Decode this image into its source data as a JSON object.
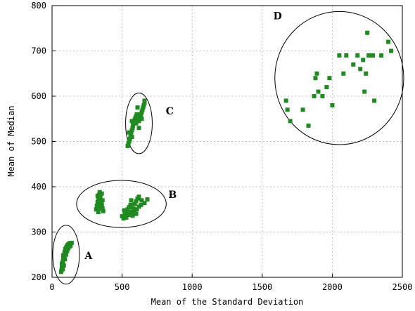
{
  "chart_data": {
    "type": "scatter",
    "xlabel": "Mean of the Standard Deviation",
    "ylabel": "Mean of Median",
    "xlim": [
      0,
      2500
    ],
    "ylim": [
      200,
      800
    ],
    "xticks": [
      0,
      500,
      1000,
      1500,
      2000,
      2500
    ],
    "yticks": [
      200,
      300,
      400,
      500,
      600,
      700,
      800
    ],
    "grid": true,
    "point_color": "#1f8a1f",
    "clusters": [
      {
        "label": "A",
        "ellipse": {
          "center": [
            100,
            250
          ],
          "radius": [
            95,
            65
          ]
        },
        "label_at": [
          260,
          240
        ],
        "points": [
          [
            65,
            212
          ],
          [
            68,
            216
          ],
          [
            70,
            220
          ],
          [
            72,
            224
          ],
          [
            74,
            228
          ],
          [
            76,
            232
          ],
          [
            78,
            236
          ],
          [
            80,
            240
          ],
          [
            83,
            244
          ],
          [
            86,
            248
          ],
          [
            88,
            252
          ],
          [
            90,
            255
          ],
          [
            93,
            258
          ],
          [
            96,
            261
          ],
          [
            99,
            264
          ],
          [
            102,
            266
          ],
          [
            106,
            268
          ],
          [
            110,
            270
          ],
          [
            114,
            272
          ],
          [
            118,
            273
          ],
          [
            122,
            274
          ],
          [
            126,
            275
          ],
          [
            130,
            275
          ],
          [
            135,
            276
          ],
          [
            140,
            276
          ],
          [
            76,
            218
          ],
          [
            84,
            226
          ],
          [
            92,
            240
          ],
          [
            100,
            250
          ],
          [
            108,
            258
          ],
          [
            116,
            264
          ],
          [
            124,
            268
          ],
          [
            132,
            270
          ],
          [
            70,
            230
          ],
          [
            80,
            248
          ],
          [
            95,
            262
          ],
          [
            110,
            266
          ],
          [
            128,
            272
          ]
        ]
      },
      {
        "label": "B",
        "ellipse": {
          "center": [
            495,
            362
          ],
          "radius": [
            320,
            52
          ]
        },
        "label_at": [
          860,
          375
        ],
        "points": [
          [
            315,
            350
          ],
          [
            320,
            358
          ],
          [
            325,
            366
          ],
          [
            330,
            374
          ],
          [
            335,
            382
          ],
          [
            340,
            388
          ],
          [
            345,
            378
          ],
          [
            350,
            368
          ],
          [
            355,
            360
          ],
          [
            360,
            352
          ],
          [
            365,
            346
          ],
          [
            330,
            344
          ],
          [
            345,
            352
          ],
          [
            360,
            370
          ],
          [
            325,
            380
          ],
          [
            340,
            360
          ],
          [
            355,
            385
          ],
          [
            500,
            335
          ],
          [
            510,
            330
          ],
          [
            520,
            340
          ],
          [
            530,
            345
          ],
          [
            540,
            350
          ],
          [
            550,
            355
          ],
          [
            560,
            360
          ],
          [
            570,
            345
          ],
          [
            580,
            352
          ],
          [
            590,
            362
          ],
          [
            600,
            368
          ],
          [
            610,
            374
          ],
          [
            620,
            378
          ],
          [
            530,
            332
          ],
          [
            545,
            338
          ],
          [
            560,
            342
          ],
          [
            575,
            336
          ],
          [
            590,
            344
          ],
          [
            605,
            350
          ],
          [
            620,
            356
          ],
          [
            640,
            370
          ],
          [
            660,
            364
          ],
          [
            680,
            372
          ],
          [
            515,
            348
          ],
          [
            565,
            370
          ],
          [
            600,
            340
          ],
          [
            635,
            360
          ]
        ]
      },
      {
        "label": "C",
        "ellipse": {
          "center": [
            620,
            540
          ],
          "radius": [
            95,
            67
          ]
        },
        "label_at": [
          840,
          560
        ],
        "points": [
          [
            540,
            490
          ],
          [
            545,
            495
          ],
          [
            550,
            500
          ],
          [
            555,
            505
          ],
          [
            560,
            510
          ],
          [
            562,
            516
          ],
          [
            565,
            520
          ],
          [
            570,
            525
          ],
          [
            575,
            530
          ],
          [
            578,
            535
          ],
          [
            580,
            540
          ],
          [
            585,
            545
          ],
          [
            590,
            548
          ],
          [
            595,
            552
          ],
          [
            600,
            556
          ],
          [
            605,
            560
          ],
          [
            610,
            553
          ],
          [
            615,
            548
          ],
          [
            620,
            545
          ],
          [
            625,
            550
          ],
          [
            630,
            555
          ],
          [
            635,
            560
          ],
          [
            640,
            565
          ],
          [
            645,
            570
          ],
          [
            650,
            575
          ],
          [
            655,
            580
          ],
          [
            660,
            585
          ],
          [
            550,
            520
          ],
          [
            570,
            510
          ],
          [
            600,
            540
          ],
          [
            620,
            530
          ],
          [
            640,
            550
          ],
          [
            660,
            590
          ],
          [
            570,
            545
          ],
          [
            610,
            575
          ]
        ]
      },
      {
        "label": "D",
        "ellipse": {
          "center": [
            2050,
            640
          ],
          "radius": [
            460,
            147
          ]
        },
        "label_at": [
          1610,
          770
        ],
        "points": [
          [
            1670,
            590
          ],
          [
            1680,
            570
          ],
          [
            1700,
            545
          ],
          [
            1790,
            570
          ],
          [
            1830,
            535
          ],
          [
            1870,
            600
          ],
          [
            1880,
            640
          ],
          [
            1890,
            650
          ],
          [
            1900,
            610
          ],
          [
            1930,
            600
          ],
          [
            1980,
            640
          ],
          [
            2000,
            580
          ],
          [
            2050,
            690
          ],
          [
            2080,
            650
          ],
          [
            2100,
            690
          ],
          [
            2180,
            690
          ],
          [
            2200,
            660
          ],
          [
            2220,
            680
          ],
          [
            2230,
            610
          ],
          [
            2240,
            650
          ],
          [
            2250,
            740
          ],
          [
            2260,
            690
          ],
          [
            2270,
            690
          ],
          [
            2290,
            690
          ],
          [
            2300,
            590
          ],
          [
            2350,
            690
          ],
          [
            2400,
            720
          ],
          [
            2420,
            700
          ],
          [
            2150,
            670
          ],
          [
            1960,
            620
          ]
        ]
      }
    ]
  }
}
